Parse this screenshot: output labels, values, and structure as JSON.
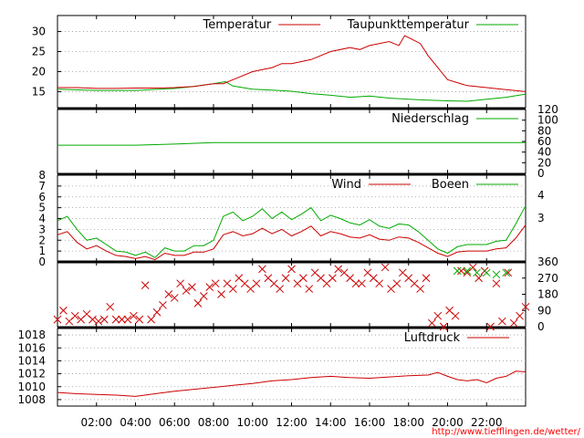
{
  "chart_data": [
    {
      "type": "line",
      "x_ticks": [
        "02:00",
        "04:00",
        "06:00",
        "08:00",
        "10:00",
        "12:00",
        "14:00",
        "16:00",
        "18:00",
        "20:00",
        "22:00"
      ],
      "x_range_hours": [
        0,
        24
      ],
      "y_ticks": [
        15,
        20,
        25,
        30
      ],
      "ylim": [
        11,
        34
      ],
      "grid": true,
      "legend_position": "top-right",
      "series": [
        {
          "name": "Temperatur",
          "color": "#cc0000",
          "x": [
            0,
            1,
            2,
            3,
            4,
            5,
            6,
            7,
            8,
            8.5,
            9,
            10,
            11,
            11.5,
            12,
            13,
            14,
            15,
            15.5,
            16,
            16.5,
            17,
            17.5,
            17.8,
            18.2,
            18.6,
            19,
            19.5,
            20,
            21,
            22,
            23,
            24
          ],
          "values": [
            16,
            16,
            15.8,
            15.8,
            15.9,
            15.9,
            16,
            16.3,
            17,
            17,
            18,
            20,
            21,
            22,
            22,
            23,
            25,
            26,
            25.5,
            26.5,
            27,
            27.5,
            26.5,
            29,
            28,
            27,
            24,
            21,
            18,
            16.5,
            16,
            15.5,
            15
          ]
        },
        {
          "name": "Taupunkttemperatur",
          "color": "#00aa00",
          "x": [
            0,
            2,
            4,
            6,
            7,
            8,
            8.6,
            9,
            10,
            11,
            12,
            13,
            14,
            15,
            16,
            17,
            18,
            19,
            20,
            21,
            22,
            23,
            24
          ],
          "values": [
            15.6,
            15.3,
            15.3,
            15.8,
            16.3,
            17,
            17.5,
            16.4,
            15.6,
            15.4,
            15.1,
            14.5,
            14.1,
            13.6,
            13.9,
            13.4,
            13.1,
            12.9,
            12.7,
            12.6,
            13.1,
            13.6,
            14.4
          ]
        }
      ]
    },
    {
      "type": "line",
      "y_right_ticks": [
        0,
        20,
        40,
        60,
        80,
        100,
        120
      ],
      "ylim": [
        0,
        120
      ],
      "legend_position": "top-right",
      "series": [
        {
          "name": "Niederschlag",
          "color": "#00aa00",
          "x": [
            0,
            4,
            5,
            6,
            8,
            10,
            12,
            14,
            16,
            18,
            20,
            22,
            24
          ],
          "values": [
            53,
            53,
            54,
            55,
            58,
            58,
            58,
            58,
            58,
            58,
            58,
            58,
            58
          ]
        }
      ]
    },
    {
      "type": "line",
      "y_ticks": [
        0,
        1,
        2,
        3,
        4,
        5,
        6,
        7,
        8
      ],
      "y_right_labels": [
        "3",
        "4"
      ],
      "ylim": [
        0,
        8
      ],
      "grid": true,
      "legend_position": "top-right",
      "series": [
        {
          "name": "Wind",
          "color": "#cc0000",
          "x": [
            0,
            0.5,
            1,
            1.5,
            2,
            2.5,
            3,
            3.5,
            4,
            4.5,
            5,
            5.5,
            6,
            6.5,
            7,
            7.5,
            8,
            8.5,
            9,
            9.5,
            10,
            10.5,
            11,
            11.5,
            12,
            12.5,
            13,
            13.5,
            14,
            14.5,
            15,
            15.5,
            16,
            16.5,
            17,
            17.5,
            18,
            18.5,
            19,
            19.5,
            20,
            20.5,
            21,
            21.5,
            22,
            22.5,
            23,
            23.5,
            24
          ],
          "values": [
            2.5,
            2.8,
            1.8,
            1.2,
            1.5,
            1.0,
            0.6,
            0.5,
            0.3,
            0.5,
            0.2,
            0.8,
            0.6,
            0.6,
            0.9,
            0.9,
            1.2,
            2.5,
            2.8,
            2.4,
            2.6,
            3.1,
            2.6,
            3.0,
            2.4,
            2.8,
            3.3,
            2.4,
            2.8,
            2.6,
            2.3,
            2.2,
            2.5,
            2.1,
            2.0,
            2.3,
            2.2,
            1.8,
            1.3,
            0.8,
            0.5,
            0.9,
            1.0,
            1.0,
            1.0,
            1.2,
            1.3,
            2.2,
            3.4
          ]
        },
        {
          "name": "Boeen",
          "color": "#00aa00",
          "x": [
            0,
            0.5,
            1,
            1.5,
            2,
            2.5,
            3,
            3.5,
            4,
            4.5,
            5,
            5.5,
            6,
            6.5,
            7,
            7.5,
            8,
            8.5,
            9,
            9.5,
            10,
            10.5,
            11,
            11.5,
            12,
            12.5,
            13,
            13.5,
            14,
            14.5,
            15,
            15.5,
            16,
            16.5,
            17,
            17.5,
            18,
            18.5,
            19,
            19.5,
            20,
            20.5,
            21,
            21.5,
            22,
            22.5,
            23,
            23.5,
            24
          ],
          "values": [
            3.8,
            4.2,
            3.0,
            2.0,
            2.2,
            1.6,
            1.0,
            0.9,
            0.6,
            0.9,
            0.4,
            1.3,
            1.0,
            1.0,
            1.5,
            1.5,
            2.0,
            4.2,
            4.6,
            3.8,
            4.2,
            4.9,
            4.0,
            4.6,
            3.9,
            4.4,
            5.0,
            3.8,
            4.3,
            4.0,
            3.6,
            3.4,
            3.9,
            3.3,
            3.1,
            3.5,
            3.4,
            2.8,
            2.0,
            1.2,
            0.8,
            1.4,
            1.6,
            1.6,
            1.6,
            1.9,
            2.0,
            3.5,
            5.2
          ]
        }
      ]
    },
    {
      "type": "scatter",
      "y_right_ticks": [
        0,
        90,
        180,
        270,
        360
      ],
      "ylim": [
        0,
        360
      ],
      "series": [
        {
          "name": "",
          "color": "#cc0000",
          "marker": "x",
          "x": [
            0,
            0.3,
            0.6,
            0.9,
            1.2,
            1.5,
            1.8,
            2.1,
            2.4,
            2.7,
            3,
            3.3,
            3.6,
            3.9,
            4.2,
            4.5,
            4.8,
            5.1,
            5.4,
            5.7,
            6,
            6.3,
            6.6,
            6.9,
            7.2,
            7.5,
            7.8,
            8.1,
            8.4,
            8.7,
            9,
            9.3,
            9.6,
            9.9,
            10.2,
            10.5,
            10.8,
            11.1,
            11.4,
            11.7,
            12,
            12.3,
            12.6,
            12.9,
            13.2,
            13.5,
            13.8,
            14.1,
            14.4,
            14.7,
            15,
            15.3,
            15.6,
            15.9,
            16.2,
            16.5,
            16.8,
            17.1,
            17.4,
            17.7,
            18,
            18.3,
            18.6,
            18.9,
            19.2,
            19.5,
            19.8,
            20.1,
            20.4,
            20.7,
            21,
            21.3,
            21.6,
            21.9,
            22.2,
            22.5,
            22.8,
            23.1,
            23.4,
            23.7,
            24
          ],
          "values": [
            40,
            90,
            30,
            60,
            40,
            70,
            40,
            30,
            40,
            110,
            40,
            40,
            40,
            60,
            40,
            230,
            40,
            80,
            120,
            180,
            160,
            240,
            200,
            220,
            130,
            170,
            220,
            240,
            180,
            240,
            210,
            270,
            240,
            210,
            240,
            320,
            270,
            240,
            210,
            270,
            320,
            240,
            270,
            210,
            300,
            270,
            240,
            270,
            320,
            300,
            270,
            240,
            240,
            300,
            270,
            240,
            330,
            210,
            240,
            300,
            270,
            240,
            210,
            270,
            20,
            60,
            0,
            90,
            60,
            310,
            300,
            330,
            270,
            310,
            0,
            240,
            30,
            300,
            20,
            60,
            110
          ]
        },
        {
          "name": "",
          "color": "#00aa00",
          "marker": "x",
          "x": [
            20.5,
            21,
            21.5,
            22,
            22.5,
            23
          ],
          "values": [
            310,
            310,
            300,
            300,
            290,
            300
          ]
        }
      ]
    },
    {
      "type": "line",
      "y_ticks": [
        1008,
        1010,
        1012,
        1014,
        1016,
        1018
      ],
      "ylim": [
        1007,
        1019
      ],
      "grid": true,
      "legend_position": "top-right",
      "series": [
        {
          "name": "Luftdruck",
          "color": "#cc0000",
          "x": [
            0,
            1,
            2,
            3,
            4,
            5,
            6,
            7,
            8,
            9,
            10,
            11,
            12,
            13,
            14,
            15,
            16,
            17,
            18,
            19,
            19.5,
            20,
            20.5,
            21,
            21.5,
            22,
            22.5,
            23,
            23.5,
            24
          ],
          "values": [
            1009.1,
            1008.9,
            1008.8,
            1008.7,
            1008.5,
            1008.9,
            1009.3,
            1009.6,
            1009.9,
            1010.2,
            1010.5,
            1010.9,
            1011.1,
            1011.4,
            1011.6,
            1011.4,
            1011.3,
            1011.5,
            1011.7,
            1011.8,
            1012.2,
            1011.6,
            1011.1,
            1010.9,
            1011.1,
            1010.6,
            1011.3,
            1011.6,
            1012.4,
            1012.3
          ]
        }
      ]
    }
  ],
  "footer": {
    "source": "http://www.tiefflingen.de/wetter/"
  }
}
